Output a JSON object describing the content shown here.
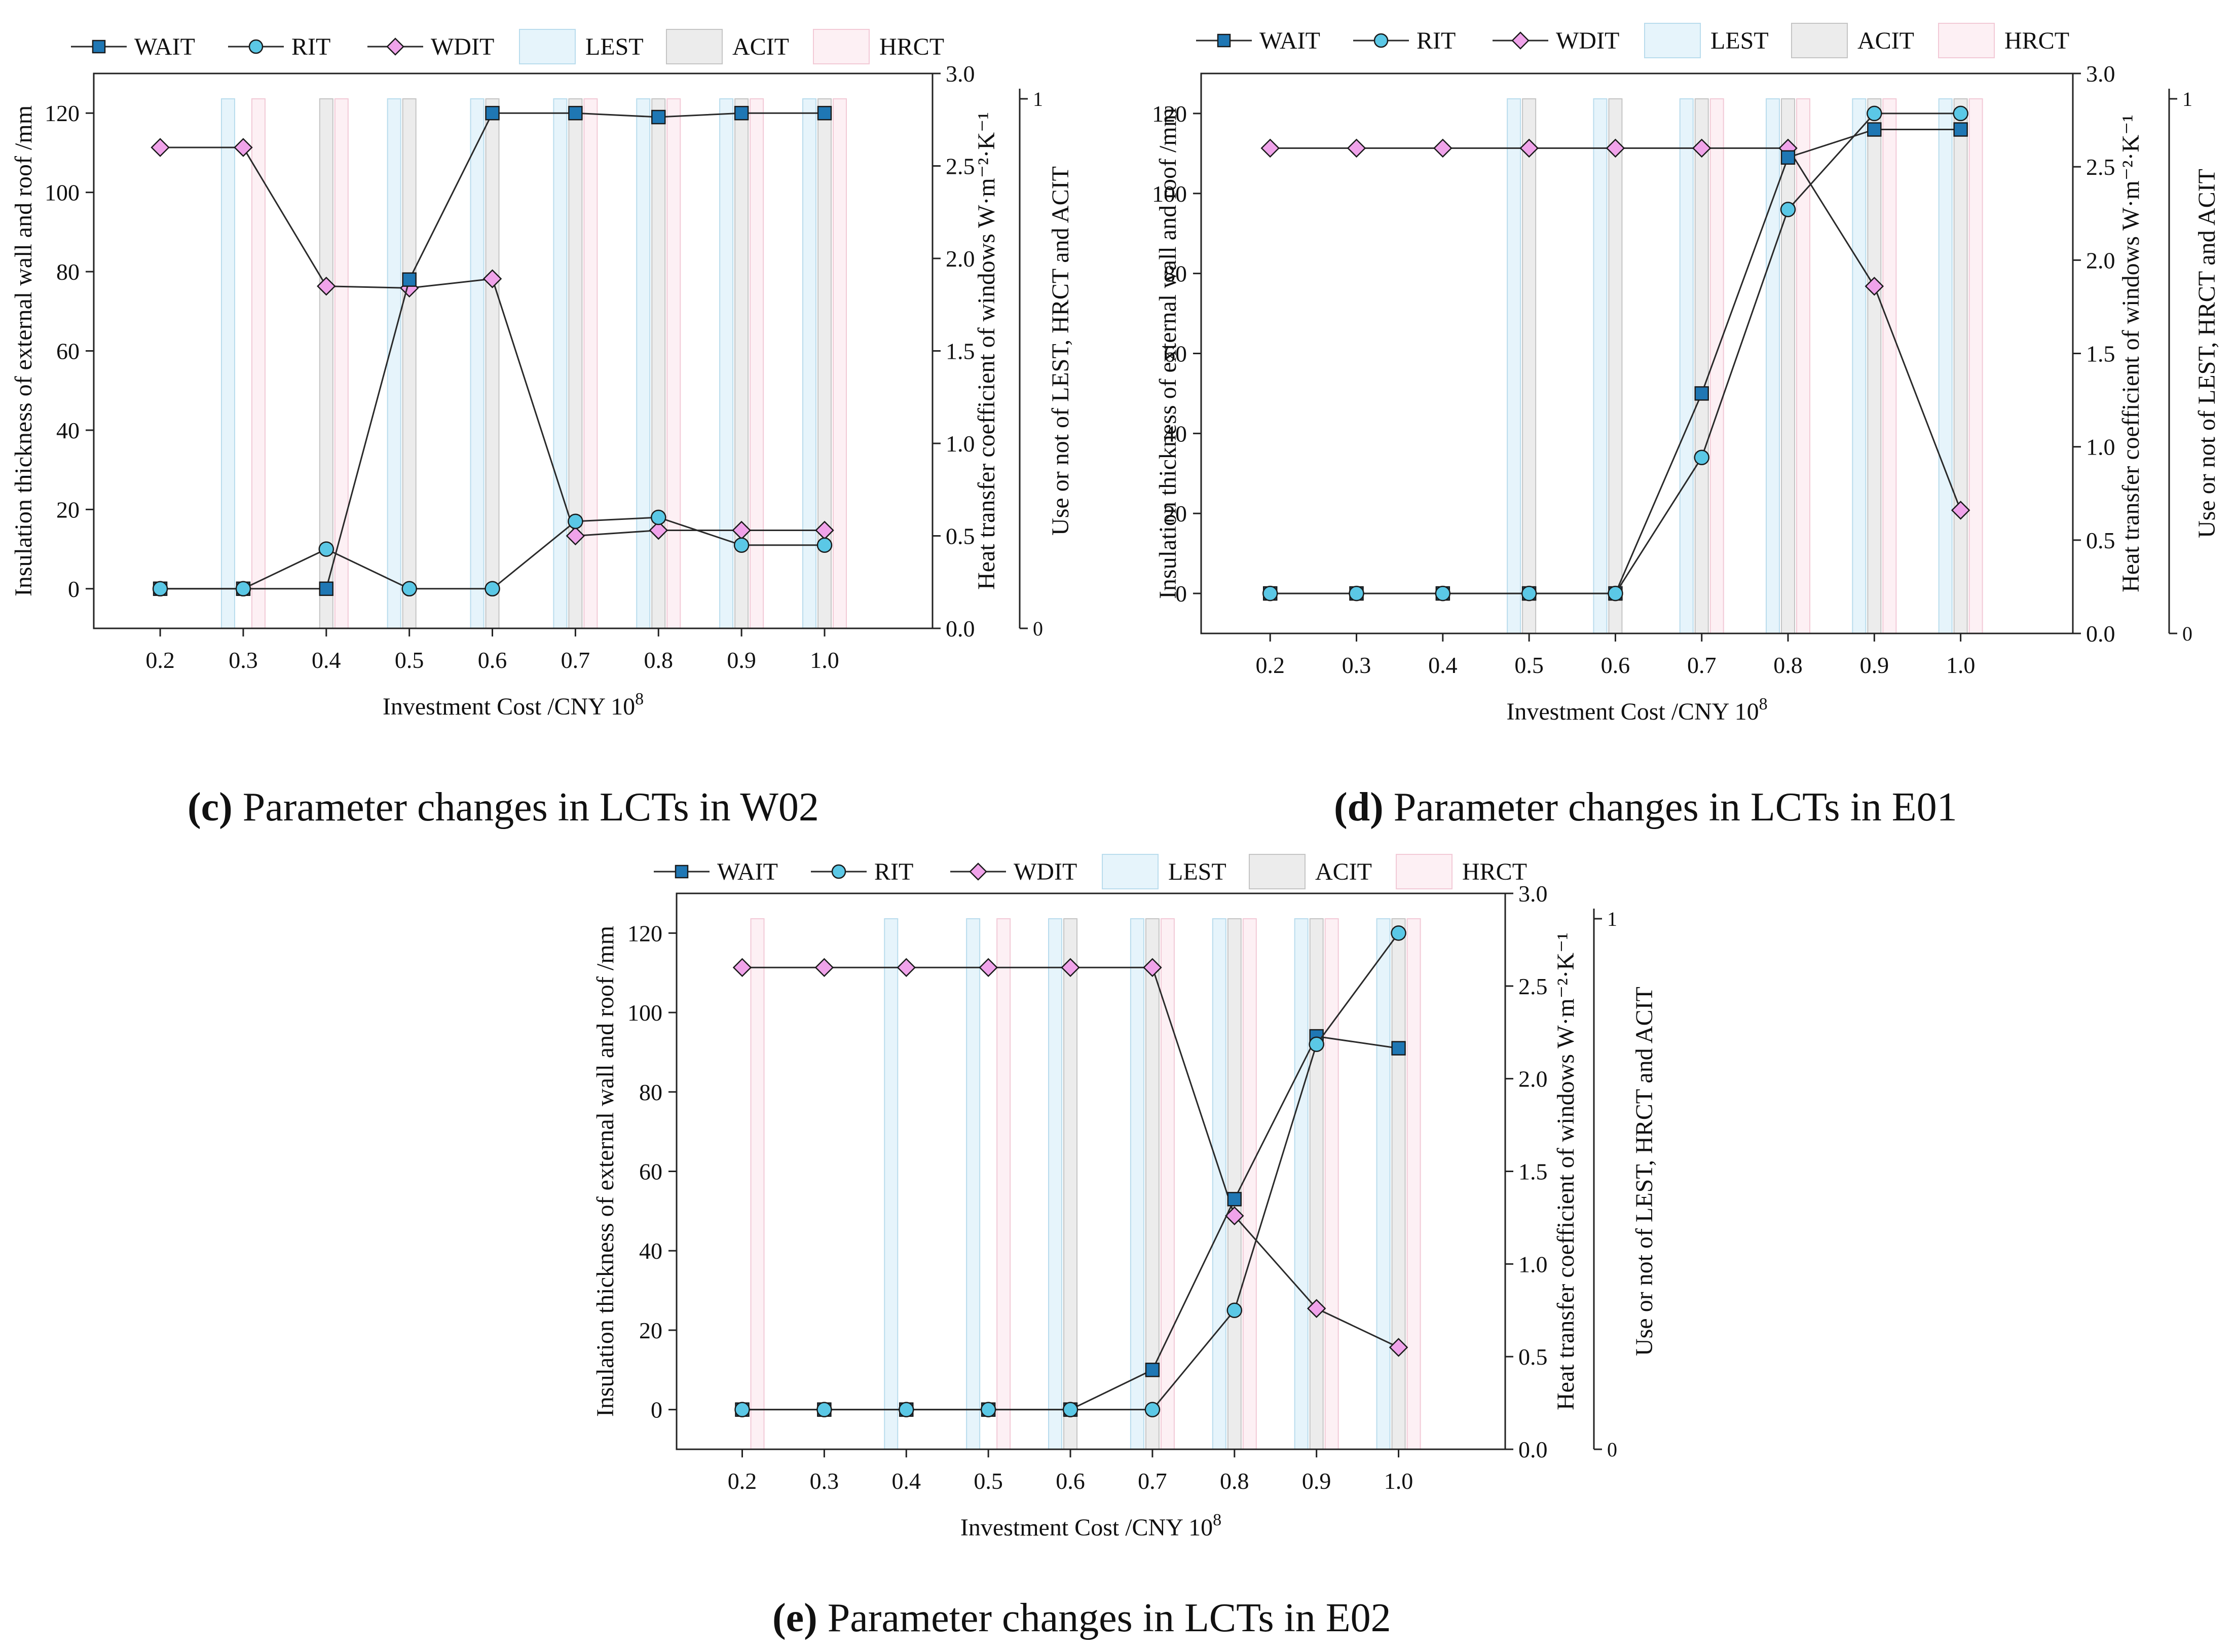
{
  "legend_labels": {
    "wait": "WAIT",
    "rit": "RIT",
    "wdit": "WDIT",
    "lest": "LEST",
    "acit": "ACIT",
    "hrct": "HRCT"
  },
  "colors": {
    "wait_marker": "#1f77b4",
    "rit_marker": "#5bc8e6",
    "wdit_marker": "#f0a3ea",
    "line": "#2a2a2a",
    "lest_bar": "#e6f4fb",
    "acit_bar": "#ececec",
    "hrct_bar": "#fdf0f4"
  },
  "charts": [
    {
      "id": "c",
      "caption_letter": "(c)",
      "caption_text": " Parameter changes in LCTs in W02",
      "xlabel": "Investment Cost /CNY 10",
      "xlabel_sup": "8",
      "ylabel_left": "Insulation thickness of external wall and roof /mm",
      "ylabel_right1": "Heat transfer coefficient of windows W·m⁻²·K⁻¹",
      "ylabel_right2": "Use or not of LEST, HRCT and ACIT",
      "x_ticks": [
        "0.2",
        "0.3",
        "0.4",
        "0.5",
        "0.6",
        "0.7",
        "0.8",
        "0.9",
        "1.0"
      ],
      "y_left_ticks": [
        "0",
        "20",
        "40",
        "60",
        "80",
        "100",
        "120"
      ],
      "y_right1_ticks": [
        "0.0",
        "0.5",
        "1.0",
        "1.5",
        "2.0",
        "2.5",
        "3.0"
      ],
      "y_right2_ticks": [
        "0",
        "1"
      ]
    },
    {
      "id": "d",
      "caption_letter": "(d)",
      "caption_text": " Parameter changes in LCTs in E01",
      "xlabel": "Investment Cost /CNY 10",
      "xlabel_sup": "8",
      "ylabel_left": "Insulation thickness of external wall and roof /mm",
      "ylabel_right1": "Heat transfer coefficient of windows W·m⁻²·K⁻¹",
      "ylabel_right2": "Use or not of LEST, HRCT and ACIT",
      "x_ticks": [
        "0.2",
        "0.3",
        "0.4",
        "0.5",
        "0.6",
        "0.7",
        "0.8",
        "0.9",
        "1.0"
      ],
      "y_left_ticks": [
        "0",
        "20",
        "40",
        "60",
        "80",
        "100",
        "120"
      ],
      "y_right1_ticks": [
        "0.0",
        "0.5",
        "1.0",
        "1.5",
        "2.0",
        "2.5",
        "3.0"
      ],
      "y_right2_ticks": [
        "0",
        "1"
      ]
    },
    {
      "id": "e",
      "caption_letter": "(e)",
      "caption_text": " Parameter changes in LCTs in E02",
      "xlabel": "Investment Cost /CNY 10",
      "xlabel_sup": "8",
      "ylabel_left": "Insulation thickness of external wall and roof /mm",
      "ylabel_right1": "Heat transfer coefficient of windows W·m⁻²·K⁻¹",
      "ylabel_right2": "Use or not of LEST, HRCT and ACIT",
      "x_ticks": [
        "0.2",
        "0.3",
        "0.4",
        "0.5",
        "0.6",
        "0.7",
        "0.8",
        "0.9",
        "1.0"
      ],
      "y_left_ticks": [
        "0",
        "20",
        "40",
        "60",
        "80",
        "100",
        "120"
      ],
      "y_right1_ticks": [
        "0.0",
        "0.5",
        "1.0",
        "1.5",
        "2.0",
        "2.5",
        "3.0"
      ],
      "y_right2_ticks": [
        "0",
        "1"
      ]
    }
  ],
  "chart_data": [
    {
      "type": "line",
      "title": "(c) Parameter changes in LCTs in W02",
      "xlabel": "Investment Cost /CNY 10^8",
      "ylabel": "Insulation thickness of external wall and roof /mm",
      "y2label": "Heat transfer coefficient of windows W·m⁻²·K⁻¹",
      "y3label": "Use or not of LEST, HRCT and ACIT",
      "x": [
        0.2,
        0.3,
        0.4,
        0.5,
        0.6,
        0.7,
        0.8,
        0.9,
        1.0
      ],
      "xlim": [
        0.12,
        1.13
      ],
      "ylim": [
        -10,
        130
      ],
      "y2lim": [
        0,
        3.0
      ],
      "y3lim": [
        0,
        1
      ],
      "series": [
        {
          "name": "WAIT",
          "axis": "left",
          "values": [
            0,
            0,
            0,
            78,
            120,
            120,
            119,
            120,
            120
          ]
        },
        {
          "name": "RIT",
          "axis": "left",
          "values": [
            0,
            0,
            10,
            0,
            0,
            17,
            18,
            11,
            11
          ]
        },
        {
          "name": "WDIT",
          "axis": "right",
          "values": [
            2.6,
            2.6,
            1.85,
            1.84,
            1.89,
            0.5,
            0.53,
            0.53,
            0.53
          ]
        },
        {
          "name": "LEST",
          "axis": "binary",
          "values": [
            0,
            1,
            0,
            1,
            1,
            1,
            1,
            1,
            1
          ]
        },
        {
          "name": "ACIT",
          "axis": "binary",
          "values": [
            0,
            0,
            1,
            1,
            1,
            1,
            1,
            1,
            1
          ]
        },
        {
          "name": "HRCT",
          "axis": "binary",
          "values": [
            0,
            1,
            1,
            0,
            0,
            1,
            1,
            1,
            1
          ]
        }
      ]
    },
    {
      "type": "line",
      "title": "(d) Parameter changes in LCTs in E01",
      "xlabel": "Investment Cost /CNY 10^8",
      "ylabel": "Insulation thickness of external wall and roof /mm",
      "y2label": "Heat transfer coefficient of windows W·m⁻²·K⁻¹",
      "y3label": "Use or not of LEST, HRCT and ACIT",
      "x": [
        0.2,
        0.3,
        0.4,
        0.5,
        0.6,
        0.7,
        0.8,
        0.9,
        1.0
      ],
      "xlim": [
        0.12,
        1.13
      ],
      "ylim": [
        -10,
        130
      ],
      "y2lim": [
        0,
        3.0
      ],
      "y3lim": [
        0,
        1
      ],
      "series": [
        {
          "name": "WAIT",
          "axis": "left",
          "values": [
            0,
            0,
            0,
            0,
            0,
            50,
            109,
            116,
            116
          ]
        },
        {
          "name": "RIT",
          "axis": "left",
          "values": [
            0,
            0,
            0,
            0,
            0,
            34,
            96,
            120,
            120
          ]
        },
        {
          "name": "WDIT",
          "axis": "right",
          "values": [
            2.6,
            2.6,
            2.6,
            2.6,
            2.6,
            2.6,
            2.6,
            1.86,
            0.66
          ]
        },
        {
          "name": "LEST",
          "axis": "binary",
          "values": [
            0,
            0,
            0,
            1,
            1,
            1,
            1,
            1,
            1
          ]
        },
        {
          "name": "ACIT",
          "axis": "binary",
          "values": [
            0,
            0,
            0,
            1,
            1,
            1,
            1,
            1,
            1
          ]
        },
        {
          "name": "HRCT",
          "axis": "binary",
          "values": [
            0,
            0,
            0,
            0,
            0,
            1,
            1,
            1,
            1
          ]
        }
      ]
    },
    {
      "type": "line",
      "title": "(e) Parameter changes in LCTs in E02",
      "xlabel": "Investment Cost /CNY 10^8",
      "ylabel": "Insulation thickness of external wall and roof /mm",
      "y2label": "Heat transfer coefficient of windows W·m⁻²·K⁻¹",
      "y3label": "Use or not of LEST, HRCT and ACIT",
      "x": [
        0.2,
        0.3,
        0.4,
        0.5,
        0.6,
        0.7,
        0.8,
        0.9,
        1.0
      ],
      "xlim": [
        0.12,
        1.13
      ],
      "ylim": [
        -10,
        130
      ],
      "y2lim": [
        0,
        3.0
      ],
      "y3lim": [
        0,
        1
      ],
      "series": [
        {
          "name": "WAIT",
          "axis": "left",
          "values": [
            0,
            0,
            0,
            0,
            0,
            10,
            53,
            94,
            91
          ]
        },
        {
          "name": "RIT",
          "axis": "left",
          "values": [
            0,
            0,
            0,
            0,
            0,
            0,
            25,
            92,
            120
          ]
        },
        {
          "name": "WDIT",
          "axis": "right",
          "values": [
            2.6,
            2.6,
            2.6,
            2.6,
            2.6,
            2.6,
            1.26,
            0.76,
            0.55
          ]
        },
        {
          "name": "LEST",
          "axis": "binary",
          "values": [
            0,
            0,
            1,
            1,
            1,
            1,
            1,
            1,
            1
          ]
        },
        {
          "name": "ACIT",
          "axis": "binary",
          "values": [
            0,
            0,
            0,
            0,
            1,
            1,
            1,
            1,
            1
          ]
        },
        {
          "name": "HRCT",
          "axis": "binary",
          "values": [
            1,
            0,
            0,
            1,
            0,
            1,
            1,
            1,
            1
          ]
        }
      ]
    }
  ]
}
